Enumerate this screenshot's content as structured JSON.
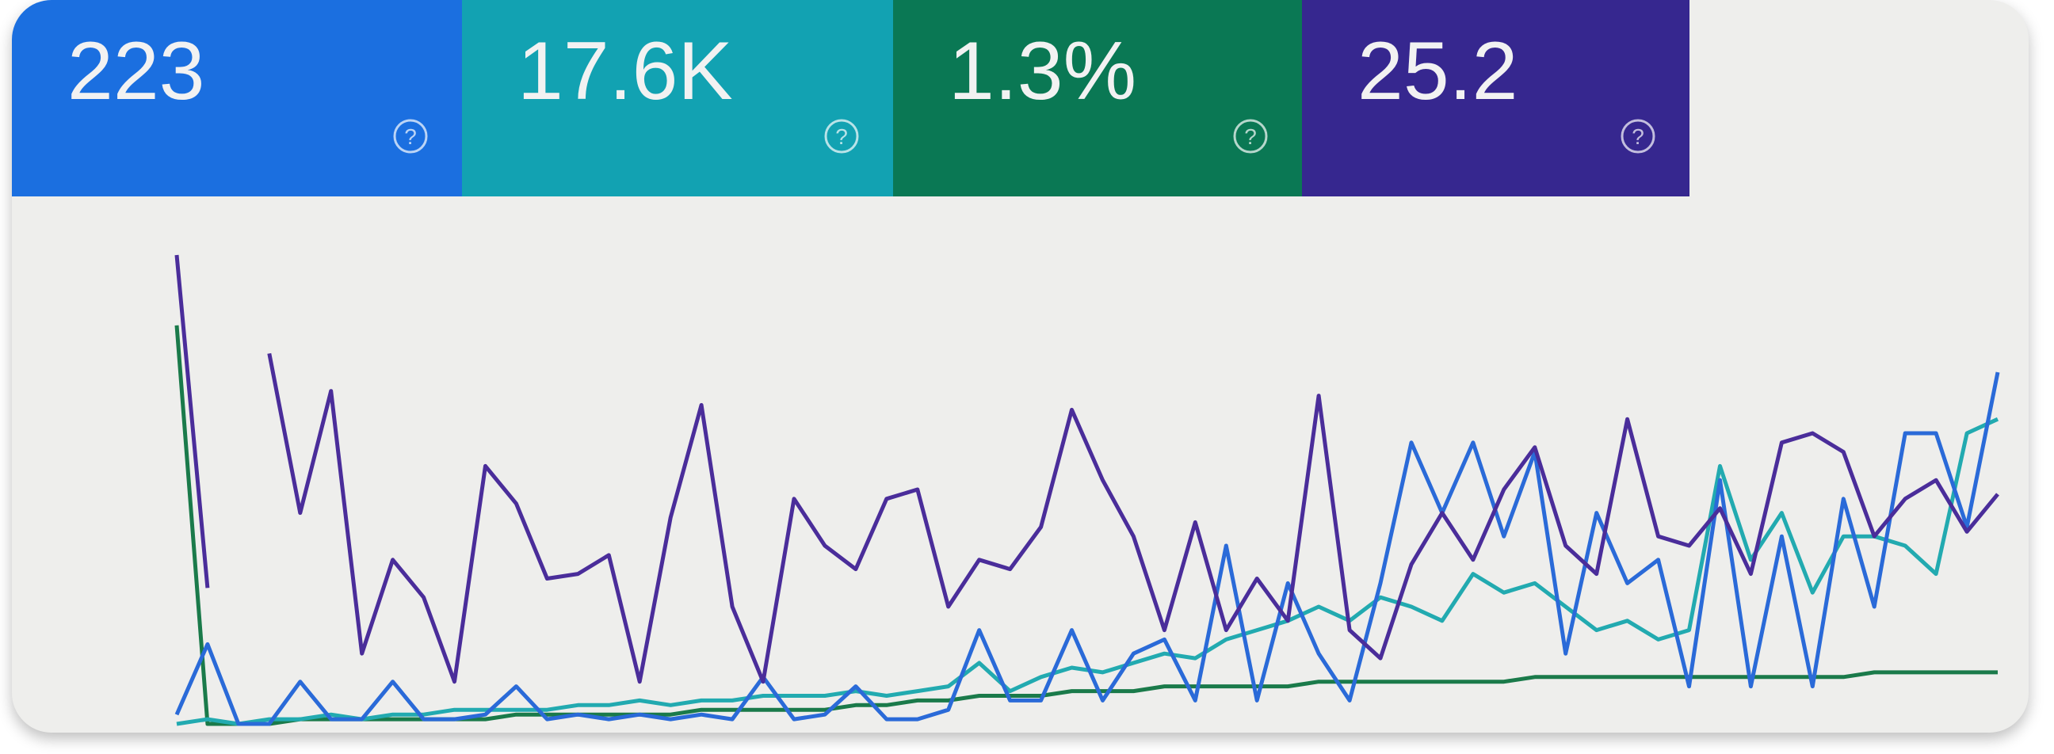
{
  "metrics": [
    {
      "value": "223",
      "color": "#1b6fe0"
    },
    {
      "value": "17.6K",
      "color": "#12a2b2"
    },
    {
      "value": "1.3%",
      "color": "#0a7854"
    },
    {
      "value": "25.2",
      "color": "#36278f"
    }
  ],
  "chart_data": {
    "type": "line",
    "ylim": [
      0,
      100
    ],
    "series": [
      {
        "color": "#1a7a4a",
        "values": [
          85,
          0,
          0,
          0,
          1,
          1,
          1,
          1,
          1,
          1,
          1,
          2,
          2,
          2,
          2,
          2,
          2,
          3,
          3,
          3,
          3,
          3,
          4,
          4,
          5,
          5,
          6,
          6,
          6,
          7,
          7,
          7,
          8,
          8,
          8,
          8,
          8,
          9,
          9,
          9,
          9,
          9,
          9,
          9,
          10,
          10,
          10,
          10,
          10,
          10,
          10,
          10,
          10,
          10,
          10,
          11,
          11,
          11,
          11,
          11
        ]
      },
      {
        "color": "#22aab0",
        "values": [
          0,
          1,
          0,
          1,
          1,
          2,
          1,
          2,
          2,
          3,
          3,
          3,
          3,
          4,
          4,
          5,
          4,
          5,
          5,
          6,
          6,
          6,
          7,
          6,
          7,
          8,
          13,
          7,
          10,
          12,
          11,
          13,
          15,
          14,
          18,
          20,
          22,
          25,
          22,
          27,
          25,
          22,
          32,
          28,
          30,
          25,
          20,
          22,
          18,
          20,
          55,
          35,
          45,
          28,
          40,
          40,
          38,
          32,
          62,
          65
        ]
      },
      {
        "color": "#2a6ad8",
        "values": [
          2,
          17,
          0,
          0,
          9,
          1,
          1,
          9,
          1,
          1,
          2,
          8,
          1,
          2,
          1,
          2,
          1,
          2,
          1,
          10,
          1,
          2,
          8,
          1,
          1,
          3,
          20,
          5,
          5,
          20,
          5,
          15,
          18,
          5,
          38,
          5,
          30,
          15,
          5,
          30,
          60,
          45,
          60,
          40,
          58,
          15,
          45,
          30,
          35,
          8,
          52,
          8,
          40,
          8,
          48,
          25,
          62,
          62,
          42,
          75
        ]
      },
      {
        "color": "#4a2d9a",
        "values": [
          100,
          29,
          null,
          79,
          45,
          71,
          15,
          35,
          27,
          9,
          55,
          47,
          31,
          32,
          36,
          9,
          44,
          68,
          25,
          9,
          48,
          38,
          33,
          48,
          50,
          25,
          35,
          33,
          42,
          67,
          52,
          40,
          20,
          43,
          20,
          31,
          22,
          70,
          20,
          14,
          34,
          45,
          35,
          50,
          59,
          38,
          32,
          65,
          40,
          38,
          46,
          32,
          60,
          62,
          58,
          40,
          48,
          52,
          41,
          49
        ]
      }
    ]
  }
}
